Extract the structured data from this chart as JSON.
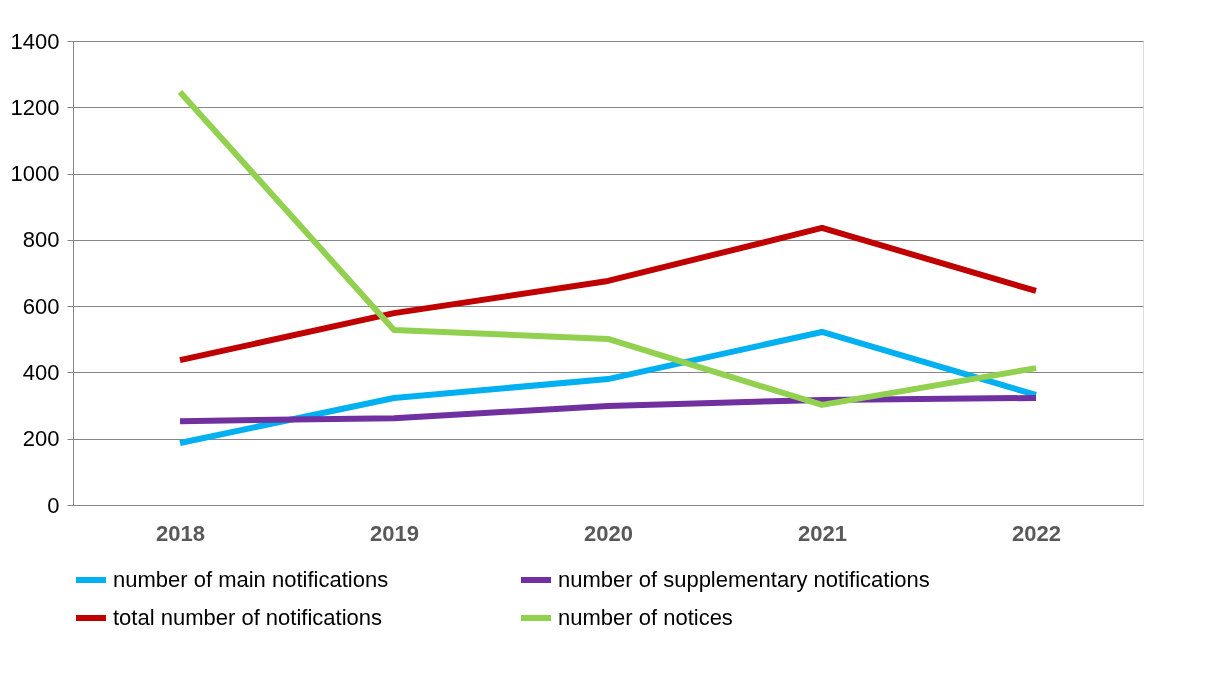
{
  "chart_data": {
    "type": "line",
    "categories": [
      "2018",
      "2019",
      "2020",
      "2021",
      "2022"
    ],
    "series": [
      {
        "name": "number of main notifications",
        "color": "#00b0f0",
        "values": [
          187,
          323,
          380,
          522,
          332
        ]
      },
      {
        "name": "number of supplementary notifications",
        "color": "#7030a0",
        "values": [
          253,
          262,
          299,
          317,
          323
        ]
      },
      {
        "name": "total number of notifications",
        "color": "#c00000",
        "values": [
          437,
          579,
          676,
          836,
          646
        ]
      },
      {
        "name": "number of notices",
        "color": "#92d050",
        "values": [
          1246,
          528,
          501,
          302,
          413
        ]
      }
    ],
    "ylim": [
      0,
      1400
    ],
    "yticks": [
      0,
      200,
      400,
      600,
      800,
      1000,
      1200,
      1400
    ],
    "grid": "y",
    "legend": "bottom",
    "marker": "none",
    "line_style": "solid"
  }
}
